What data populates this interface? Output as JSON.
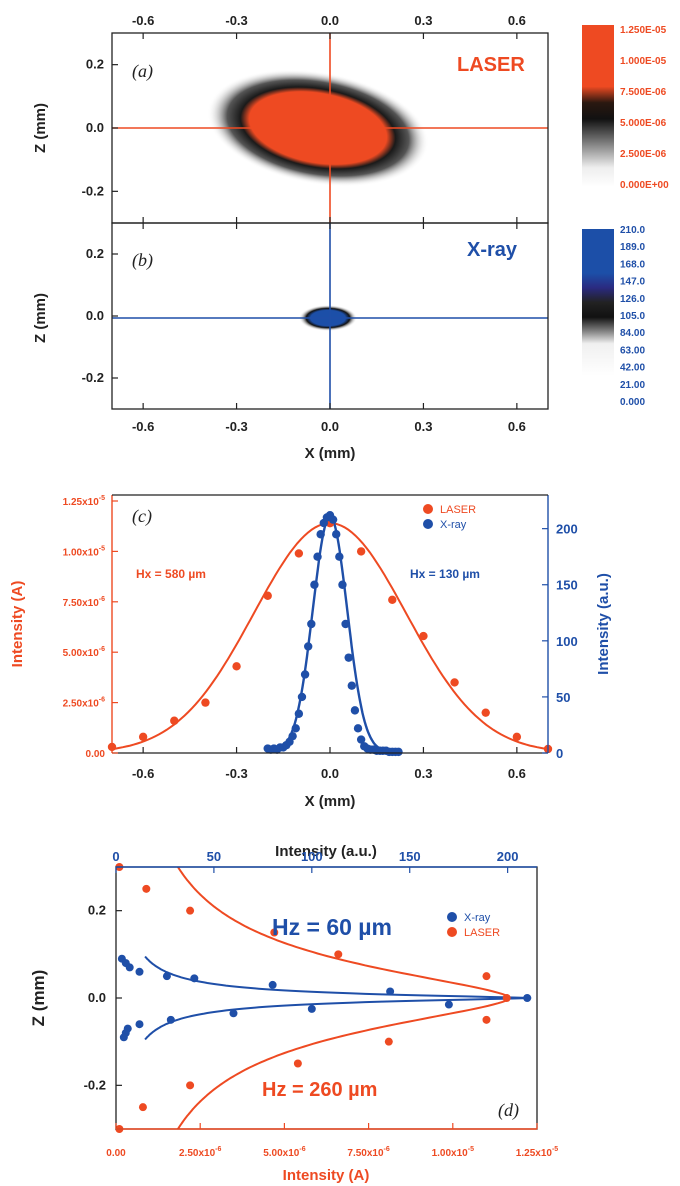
{
  "chart_data": [
    {
      "id": "a",
      "type": "heatmap",
      "panel_label": "(a)",
      "title": "LASER",
      "ylabel": "Z (mm)",
      "xlim": [
        -0.7,
        0.7
      ],
      "ylim": [
        -0.3,
        0.3
      ],
      "x_ticks": [
        "-0.6",
        "-0.3",
        "0.0",
        "0.3",
        "0.6"
      ],
      "y_ticks": [
        "0.2",
        "0.0",
        "-0.2"
      ],
      "colorbar": [
        "1.250E-05",
        "1.000E-05",
        "7.500E-06",
        "5.000E-06",
        "2.500E-06",
        "0.000E+00"
      ],
      "crosshair": [
        0,
        0
      ]
    },
    {
      "id": "b",
      "type": "heatmap",
      "panel_label": "(b)",
      "title": "X-ray",
      "xlabel": "X (mm)",
      "ylabel": "Z (mm)",
      "xlim": [
        -0.7,
        0.7
      ],
      "ylim": [
        -0.3,
        0.3
      ],
      "x_ticks": [
        "-0.6",
        "-0.3",
        "0.0",
        "0.3",
        "0.6"
      ],
      "y_ticks": [
        "0.2",
        "0.0",
        "-0.2"
      ],
      "colorbar": [
        "210.0",
        "189.0",
        "168.0",
        "147.0",
        "126.0",
        "105.0",
        "84.00",
        "63.00",
        "42.00",
        "21.00",
        "0.000"
      ],
      "crosshair": [
        0,
        0
      ]
    },
    {
      "id": "c",
      "type": "scatter",
      "panel_label": "(c)",
      "xlabel": "X (mm)",
      "ylabel": "Intensity (A)",
      "ylabel_right": "Intensity (a.u.)",
      "xlim": [
        -0.7,
        0.7
      ],
      "ylim": [
        0,
        1.25e-05
      ],
      "ylim_right": [
        0,
        230
      ],
      "x_ticks": [
        "-0.6",
        "-0.3",
        "0.0",
        "0.3",
        "0.6"
      ],
      "y_ticks": [
        {
          "m": "0.00",
          "e": ""
        },
        {
          "m": "2.50x10",
          "e": "-6"
        },
        {
          "m": "5.00x10",
          "e": "-6"
        },
        {
          "m": "7.50x10",
          "e": "-6"
        },
        {
          "m": "1.00x10",
          "e": "-5"
        },
        {
          "m": "1.25x10",
          "e": "-5"
        }
      ],
      "y_ticks_right": [
        "0",
        "50",
        "100",
        "150",
        "200"
      ],
      "annotations": [
        "Hx = 580 µm",
        "Hx = 130 µm"
      ],
      "legend": [
        "LASER",
        "X-ray"
      ],
      "series": [
        {
          "name": "LASER",
          "color": "#ee4a22",
          "axis": "left",
          "x": [
            -0.7,
            -0.6,
            -0.5,
            -0.4,
            -0.3,
            -0.2,
            -0.1,
            0.0,
            0.1,
            0.2,
            0.3,
            0.4,
            0.5,
            0.6,
            0.7
          ],
          "y": [
            3e-07,
            8e-07,
            1.6e-06,
            2.5e-06,
            4.3e-06,
            7.8e-06,
            9.9e-06,
            1.14e-05,
            1e-05,
            7.6e-06,
            5.8e-06,
            3.5e-06,
            2e-06,
            8e-07,
            2e-07
          ]
        },
        {
          "name": "X-ray",
          "color": "#1f4fa8",
          "axis": "right",
          "x": [
            -0.2,
            -0.19,
            -0.18,
            -0.17,
            -0.16,
            -0.15,
            -0.14,
            -0.13,
            -0.12,
            -0.11,
            -0.1,
            -0.09,
            -0.08,
            -0.07,
            -0.06,
            -0.05,
            -0.04,
            -0.03,
            -0.02,
            -0.01,
            0.0,
            0.01,
            0.02,
            0.03,
            0.04,
            0.05,
            0.06,
            0.07,
            0.08,
            0.09,
            0.1,
            0.11,
            0.12,
            0.13,
            0.14,
            0.15,
            0.16,
            0.17,
            0.18,
            0.19,
            0.2,
            0.21,
            0.22
          ],
          "y": [
            4,
            3,
            4,
            3,
            5,
            5,
            7,
            10,
            15,
            22,
            35,
            50,
            70,
            95,
            115,
            150,
            175,
            195,
            205,
            210,
            212,
            208,
            195,
            175,
            150,
            115,
            85,
            60,
            38,
            22,
            12,
            6,
            4,
            3,
            3,
            2,
            2,
            2,
            2,
            1,
            1,
            1,
            1
          ]
        }
      ]
    },
    {
      "id": "d",
      "type": "scatter",
      "panel_label": "(d)",
      "xlabel": "Intensity (A)",
      "xlabel_top": "Intensity (a.u.)",
      "ylabel": "Z (mm)",
      "xlim": [
        0,
        1.25e-05
      ],
      "xlim_top": [
        0,
        215
      ],
      "ylim": [
        -0.3,
        0.3
      ],
      "x_ticks": [
        {
          "m": "0.00",
          "e": ""
        },
        {
          "m": "2.50x10",
          "e": "-6"
        },
        {
          "m": "5.00x10",
          "e": "-6"
        },
        {
          "m": "7.50x10",
          "e": "-6"
        },
        {
          "m": "1.00x10",
          "e": "-5"
        },
        {
          "m": "1.25x10",
          "e": "-5"
        }
      ],
      "x_ticks_top": [
        "0",
        "50",
        "100",
        "150",
        "200"
      ],
      "y_ticks": [
        "0.2",
        "0.0",
        "-0.2"
      ],
      "annotations": [
        "Hz = 60 µm",
        "Hz = 260 µm"
      ],
      "legend": [
        "X-ray",
        "LASER"
      ],
      "series": [
        {
          "name": "X-ray",
          "color": "#1f4fa8",
          "axis": "top",
          "z": [
            0.09,
            0.08,
            0.07,
            0.06,
            0.05,
            0.045,
            0.03,
            0.015,
            0.0,
            -0.015,
            -0.025,
            -0.035,
            -0.05,
            -0.06,
            -0.07,
            -0.08,
            -0.09
          ],
          "v": [
            3,
            5,
            7,
            12,
            26,
            40,
            80,
            140,
            210,
            170,
            100,
            60,
            28,
            12,
            6,
            5,
            4
          ]
        },
        {
          "name": "LASER",
          "color": "#ee4a22",
          "axis": "bottom",
          "z": [
            0.3,
            0.25,
            0.2,
            0.15,
            0.1,
            0.05,
            0.0,
            -0.05,
            -0.1,
            -0.15,
            -0.2,
            -0.25,
            -0.3
          ],
          "v": [
            1e-07,
            9e-07,
            2.2e-06,
            4.7e-06,
            6.6e-06,
            1.1e-05,
            1.16e-05,
            1.1e-05,
            8.1e-06,
            5.4e-06,
            2.2e-06,
            8e-07,
            1e-07
          ]
        }
      ]
    }
  ],
  "colors": {
    "laser": "#ee4a22",
    "xray": "#1f4fa8",
    "axis": "#222222"
  }
}
